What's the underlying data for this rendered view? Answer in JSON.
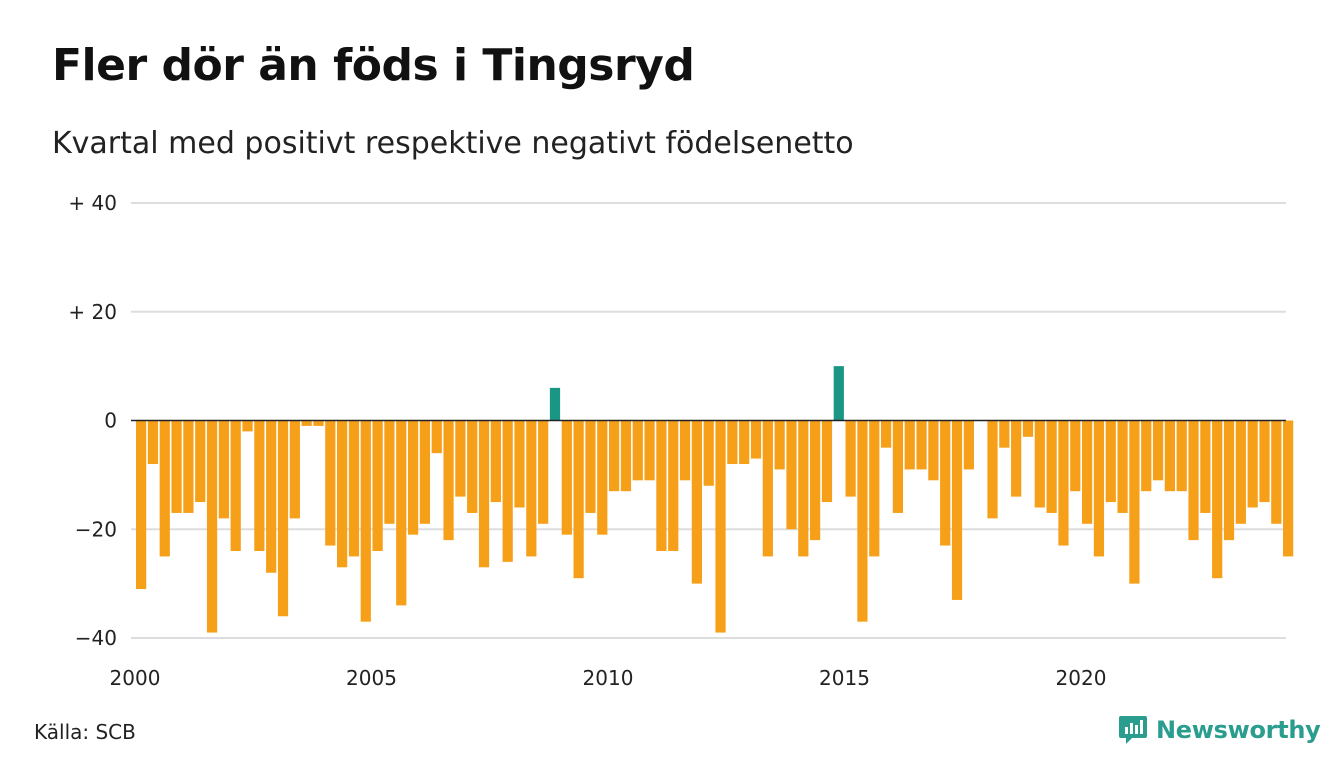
{
  "title": "Fler dör än föds i Tingsryd",
  "subtitle": "Kvartal med positivt respektive negativt födelsenetto",
  "source": "Källa: SCB",
  "brand": "Newsworthy",
  "colors": {
    "negative": "#f6a01a",
    "positive": "#1a9685",
    "grid": "#dddddd",
    "baseline": "#222222",
    "brand": "#2a9d8f"
  },
  "chart_data": {
    "type": "bar",
    "title": "Fler dör än föds i Tingsryd",
    "subtitle": "Kvartal med positivt respektive negativt födelsenetto",
    "x_start_year": 2000,
    "quarters_per_year": 4,
    "ylim": [
      -40,
      40
    ],
    "yticks": [
      40,
      20,
      0,
      -20,
      -40
    ],
    "ytick_labels": [
      "+ 40",
      "+ 20",
      "0",
      "−20",
      "−40"
    ],
    "xticks": [
      2000,
      2005,
      2010,
      2015,
      2020
    ],
    "xtick_labels": [
      "2000",
      "2005",
      "2010",
      "2015",
      "2020"
    ],
    "grid": true,
    "values": [
      -31,
      -8,
      -25,
      -17,
      -17,
      -15,
      -39,
      -18,
      -24,
      -2,
      -24,
      -28,
      -36,
      -18,
      -1,
      -1,
      -23,
      -27,
      -25,
      -37,
      -24,
      -19,
      -34,
      -21,
      -19,
      -6,
      -22,
      -14,
      -17,
      -27,
      -15,
      -26,
      -16,
      -25,
      -19,
      6,
      -21,
      -29,
      -17,
      -21,
      -13,
      -13,
      -11,
      -11,
      -24,
      -24,
      -11,
      -30,
      -12,
      -39,
      -8,
      -8,
      -7,
      -25,
      -9,
      -20,
      -25,
      -22,
      -15,
      10,
      -14,
      -37,
      -25,
      -5,
      -17,
      -9,
      -9,
      -11,
      -23,
      -33,
      -9,
      0,
      -18,
      -5,
      -14,
      -3,
      -16,
      -17,
      -23,
      -13,
      -19,
      -25,
      -15,
      -17,
      -30,
      -13,
      -11,
      -13,
      -13,
      -22,
      -17,
      -29,
      -22,
      -19,
      -16,
      -15,
      -19,
      -25
    ]
  }
}
